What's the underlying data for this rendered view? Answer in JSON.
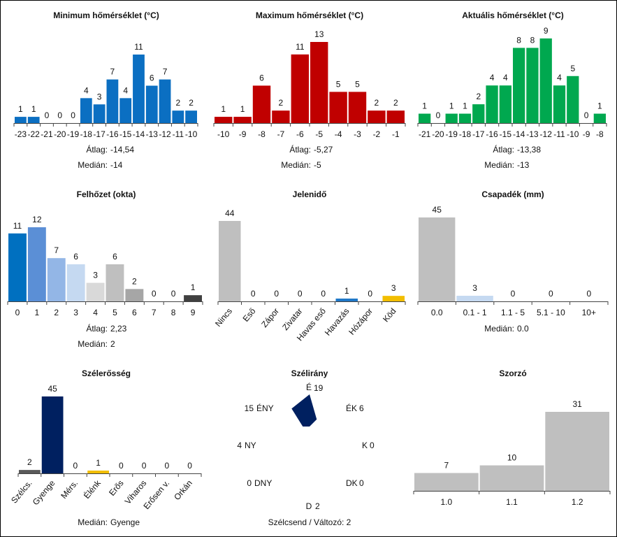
{
  "chart_data": [
    {
      "id": "min",
      "type": "bar",
      "title": "Minimum hőmérséklet (°C)",
      "categories": [
        "-23",
        "-22",
        "-21",
        "-20",
        "-19",
        "-18",
        "-17",
        "-16",
        "-15",
        "-14",
        "-13",
        "-12",
        "-11",
        "-10"
      ],
      "values": [
        1,
        1,
        0,
        0,
        0,
        4,
        3,
        7,
        4,
        11,
        6,
        7,
        2,
        2
      ],
      "ylim": [
        0,
        11
      ],
      "colors": [
        "#0b6fc2"
      ],
      "stats": [
        {
          "label": "Átlag:",
          "value": "-14,54"
        },
        {
          "label": "Medián:",
          "value": "-14"
        }
      ]
    },
    {
      "id": "max",
      "type": "bar",
      "title": "Maximum hőmérséklet (°C)",
      "categories": [
        "-10",
        "-9",
        "-8",
        "-7",
        "-6",
        "-5",
        "-4",
        "-3",
        "-2",
        "-1"
      ],
      "values": [
        1,
        1,
        6,
        2,
        11,
        13,
        5,
        5,
        2,
        2
      ],
      "ylim": [
        0,
        13
      ],
      "colors": [
        "#c00000"
      ],
      "stats": [
        {
          "label": "Átlag:",
          "value": "-5,27"
        },
        {
          "label": "Medián:",
          "value": "-5"
        }
      ]
    },
    {
      "id": "akt",
      "type": "bar",
      "title": "Aktuális hőmérséklet (°C)",
      "categories": [
        "-21",
        "-20",
        "-19",
        "-18",
        "-17",
        "-16",
        "-15",
        "-14",
        "-13",
        "-12",
        "-11",
        "-10",
        "-9",
        "-8"
      ],
      "values": [
        1,
        0,
        1,
        1,
        2,
        4,
        4,
        8,
        8,
        9,
        4,
        5,
        0,
        1
      ],
      "ylim": [
        0,
        9
      ],
      "colors": [
        "#00a84f"
      ],
      "stats": [
        {
          "label": "Átlag:",
          "value": "-13,38"
        },
        {
          "label": "Medián:",
          "value": "-13"
        }
      ]
    },
    {
      "id": "felhozet",
      "type": "bar",
      "title": "Felhőzet (okta)",
      "categories": [
        "0",
        "1",
        "2",
        "3",
        "4",
        "5",
        "6",
        "7",
        "8",
        "9"
      ],
      "values": [
        11,
        12,
        7,
        6,
        3,
        6,
        2,
        0,
        0,
        1
      ],
      "ylim": [
        0,
        12
      ],
      "colors": [
        "#0070c0",
        "#5b8fd6",
        "#93b6e6",
        "#c5d9f1",
        "#d9d9d9",
        "#bfbfbf",
        "#a6a6a6",
        "#8c8c8c",
        "#6e6e6e",
        "#404040"
      ],
      "stats": [
        {
          "label": "Átlag:",
          "value": "2,23"
        },
        {
          "label": "Medián:",
          "value": "2"
        }
      ]
    },
    {
      "id": "jelenido",
      "type": "bar",
      "title": "Jelenidő",
      "categories": [
        "Nincs",
        "Eső",
        "Zápor",
        "Zivatar",
        "Havas eső",
        "Havazás",
        "Hózápor",
        "Köd"
      ],
      "values": [
        44,
        0,
        0,
        0,
        0,
        1,
        0,
        3
      ],
      "ylim": [
        0,
        44
      ],
      "colors": [
        "#bfbfbf",
        "#bfbfbf",
        "#bfbfbf",
        "#bfbfbf",
        "#bfbfbf",
        "#1f78c8",
        "#bfbfbf",
        "#f2be00"
      ],
      "stats": []
    },
    {
      "id": "csapadek",
      "type": "bar",
      "title": "Csapadék (mm)",
      "categories": [
        "0.0",
        "0.1 - 1",
        "1.1 - 5",
        "5.1 - 10",
        "10+"
      ],
      "values": [
        45,
        3,
        0,
        0,
        0
      ],
      "ylim": [
        0,
        45
      ],
      "colors": [
        "#bfbfbf",
        "#c5d9f1",
        "#bfbfbf",
        "#bfbfbf",
        "#bfbfbf"
      ],
      "stats": [
        {
          "label": "Medián:",
          "value": "0.0"
        }
      ]
    },
    {
      "id": "szelerosseg",
      "type": "bar",
      "title": "Szélerősség",
      "categories": [
        "Szélcs.",
        "Gyenge",
        "Mérs.",
        "Élénk",
        "Erős",
        "Viharos",
        "Erősen v.",
        "Orkán"
      ],
      "values": [
        2,
        45,
        0,
        1,
        0,
        0,
        0,
        0
      ],
      "ylim": [
        0,
        45
      ],
      "colors": [
        "#595959",
        "#002060",
        "#bfbfbf",
        "#f2be00",
        "#bfbfbf",
        "#bfbfbf",
        "#bfbfbf",
        "#bfbfbf"
      ],
      "stats": [
        {
          "label": "Medián:",
          "value": "Gyenge"
        }
      ]
    },
    {
      "id": "szelirany",
      "type": "radar",
      "title": "Szélirány",
      "directions": [
        "É",
        "ÉK",
        "K",
        "DK",
        "D",
        "DNY",
        "NY",
        "ÉNY"
      ],
      "values": [
        19,
        6,
        0,
        0,
        2,
        0,
        4,
        15
      ],
      "max": 19,
      "color": "#002060",
      "footer": "Szélcsend / Változó: 2"
    },
    {
      "id": "szorzo",
      "type": "bar",
      "title": "Szorzó",
      "categories": [
        "1.0",
        "1.1",
        "1.2"
      ],
      "values": [
        7,
        10,
        31
      ],
      "ylim": [
        0,
        31
      ],
      "colors": [
        "#bfbfbf"
      ],
      "stats": []
    }
  ]
}
